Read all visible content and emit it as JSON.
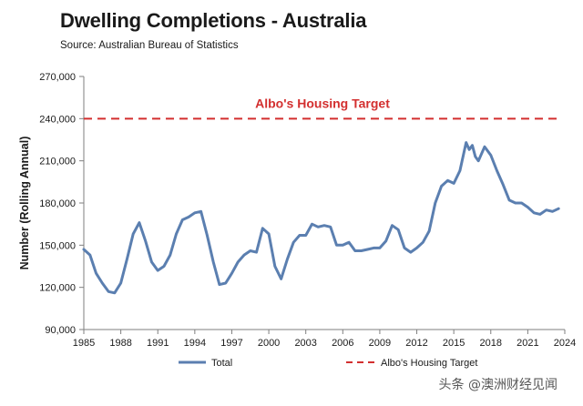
{
  "header": {
    "title": "Dwelling Completions - Australia",
    "source": "Source: Australian Bureau of Statistics"
  },
  "watermark": "头条 @澳洲财经见闻",
  "colors": {
    "series": "#5b7fb0",
    "target": "#d32f2f",
    "axis": "#7f7f7f"
  },
  "chart_data": {
    "type": "line",
    "title": "Dwelling Completions - Australia",
    "xlabel": "",
    "ylabel": "Number (Rolling Annual)",
    "xlim": [
      1985,
      2024
    ],
    "ylim": [
      90000,
      270000
    ],
    "x_ticks": [
      1985,
      1988,
      1991,
      1994,
      1997,
      2000,
      2003,
      2006,
      2009,
      2012,
      2015,
      2018,
      2021,
      2024
    ],
    "y_ticks": [
      90000,
      120000,
      150000,
      180000,
      210000,
      240000,
      270000
    ],
    "y_tick_labels": [
      "90,000",
      "120,000",
      "150,000",
      "180,000",
      "210,000",
      "240,000",
      "270,000"
    ],
    "grid": false,
    "legend": "bottom",
    "series": [
      {
        "name": "Total",
        "x": [
          1985.0,
          1985.5,
          1986.0,
          1986.5,
          1987.0,
          1987.5,
          1988.0,
          1988.5,
          1989.0,
          1989.5,
          1990.0,
          1990.5,
          1991.0,
          1991.5,
          1992.0,
          1992.5,
          1993.0,
          1993.5,
          1994.0,
          1994.5,
          1995.0,
          1995.5,
          1996.0,
          1996.5,
          1997.0,
          1997.5,
          1998.0,
          1998.5,
          1999.0,
          1999.5,
          2000.0,
          2000.5,
          2001.0,
          2001.5,
          2002.0,
          2002.5,
          2003.0,
          2003.5,
          2004.0,
          2004.5,
          2005.0,
          2005.5,
          2006.0,
          2006.5,
          2007.0,
          2007.5,
          2008.0,
          2008.5,
          2009.0,
          2009.5,
          2010.0,
          2010.5,
          2011.0,
          2011.5,
          2012.0,
          2012.5,
          2013.0,
          2013.5,
          2014.0,
          2014.5,
          2015.0,
          2015.5,
          2016.0,
          2016.25,
          2016.5,
          2016.75,
          2017.0,
          2017.5,
          2018.0,
          2018.5,
          2019.0,
          2019.5,
          2020.0,
          2020.5,
          2021.0,
          2021.5,
          2022.0,
          2022.5,
          2023.0,
          2023.5
        ],
        "values": [
          147000,
          143000,
          130000,
          123000,
          117000,
          116000,
          123000,
          140000,
          158000,
          166000,
          153000,
          138000,
          132000,
          135000,
          143000,
          158000,
          168000,
          170000,
          173000,
          174000,
          157000,
          138000,
          122000,
          123000,
          130000,
          138000,
          143000,
          146000,
          145000,
          162000,
          158000,
          135000,
          126000,
          140000,
          152000,
          157000,
          157000,
          165000,
          163000,
          164000,
          163000,
          150000,
          150000,
          152000,
          146000,
          146000,
          147000,
          148000,
          148000,
          153000,
          164000,
          161000,
          148000,
          145000,
          148000,
          152000,
          160000,
          180000,
          192000,
          196000,
          194000,
          203000,
          223000,
          218000,
          221000,
          213000,
          210000,
          220000,
          214000,
          203000,
          193000,
          182000,
          180000,
          180000,
          177000,
          173000,
          172000,
          175000,
          174000,
          176000
        ]
      },
      {
        "name": "Albo's Housing Target",
        "values": [
          240000
        ],
        "style": "dashed"
      }
    ],
    "annotations": [
      {
        "text": "Albo's Housing Target",
        "y": 240000
      }
    ]
  }
}
